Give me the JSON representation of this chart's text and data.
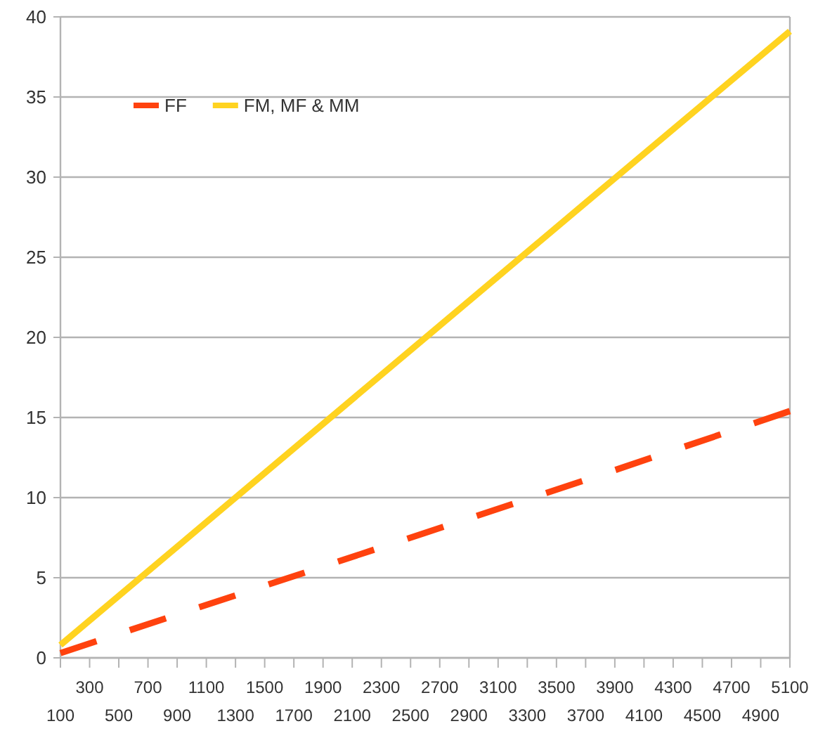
{
  "chart_data": {
    "type": "line",
    "x": [
      100,
      1300,
      2500,
      3700,
      5100
    ],
    "series": [
      {
        "name": "FF",
        "color": "#ff420e",
        "line_style": "dashed",
        "values": [
          0.3,
          3.9,
          7.5,
          11.1,
          15.4
        ]
      },
      {
        "name": "FM, MF & MM",
        "color": "#ffd320",
        "line_style": "solid",
        "values": [
          0.8,
          10,
          19.2,
          28.4,
          39.1
        ]
      }
    ],
    "xlim": [
      100,
      5100
    ],
    "xticks": [
      {
        "value": 100,
        "label": null
      },
      300,
      {
        "value": 500,
        "label": null
      },
      700,
      {
        "value": 900,
        "label": null
      },
      1100,
      {
        "value": 1300,
        "label": null
      },
      1500,
      {
        "value": 1700,
        "label": null
      },
      1900,
      {
        "value": 2100,
        "label": null
      },
      2300,
      {
        "value": 2500,
        "label": null
      },
      2700,
      {
        "value": 2900,
        "label": null
      },
      3100,
      {
        "value": 3300,
        "label": null
      },
      3500,
      {
        "value": 3700,
        "label": null
      },
      3900,
      {
        "value": 4100,
        "label": null
      },
      4300,
      {
        "value": 4500,
        "label": null
      },
      4700,
      {
        "value": 4900,
        "label": null
      },
      5100
    ],
    "x2lim": [
      100,
      5100
    ],
    "x2ticks": [
      100,
      500,
      900,
      1300,
      1700,
      2100,
      2500,
      2900,
      3300,
      3700,
      4100,
      4500,
      4900
    ],
    "ylim": [
      0,
      40
    ],
    "yticks": [
      0,
      5,
      10,
      15,
      20,
      25,
      30,
      35,
      40
    ],
    "grid": "y",
    "legend": "top left",
    "marker": "none"
  }
}
